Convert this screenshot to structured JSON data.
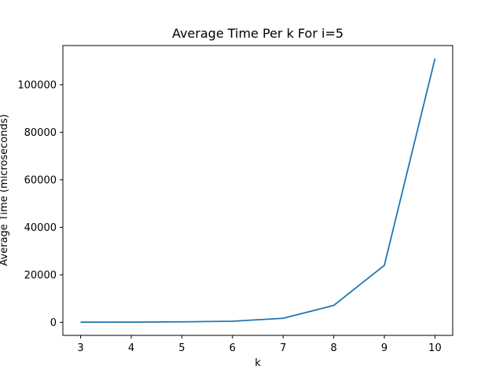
{
  "chart_data": {
    "type": "line",
    "title": "Average Time Per k For i=5",
    "xlabel": "k",
    "ylabel": "Average Time (microseconds)",
    "x": [
      3,
      4,
      5,
      6,
      7,
      8,
      9,
      10
    ],
    "series": [
      {
        "values": [
          50,
          80,
          200,
          450,
          1700,
          7100,
          24000,
          111000
        ],
        "color": "#1f77b4"
      }
    ],
    "xlim": [
      2.65,
      10.35
    ],
    "ylim": [
      -5500,
      116500
    ],
    "xticks": [
      3,
      4,
      5,
      6,
      7,
      8,
      9,
      10
    ],
    "yticks": [
      0,
      20000,
      40000,
      60000,
      80000,
      100000
    ],
    "grid": false,
    "legend": "none"
  }
}
